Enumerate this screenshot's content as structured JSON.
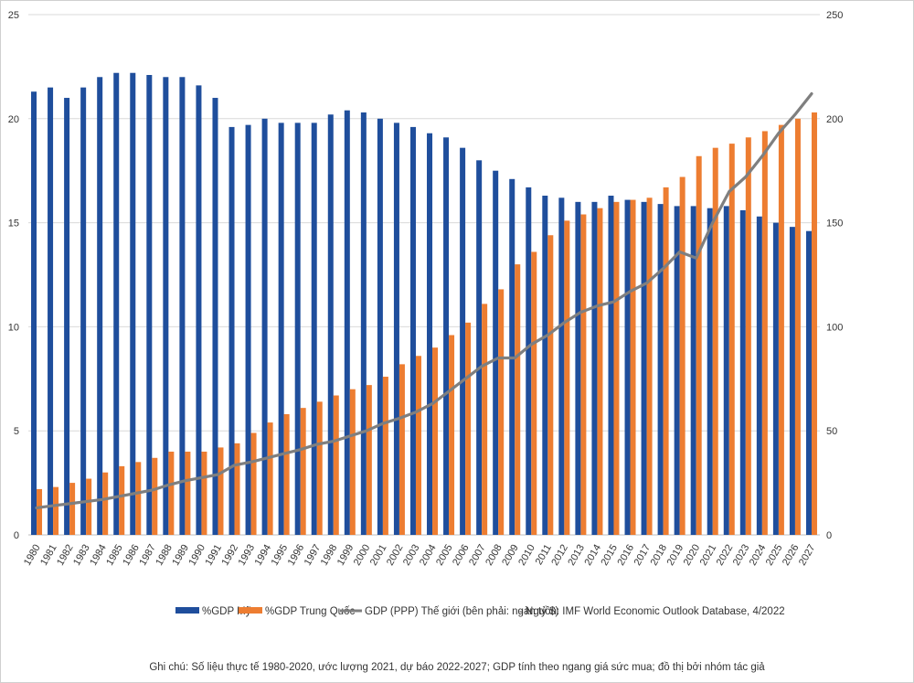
{
  "chart_data": {
    "type": "bar",
    "title": "",
    "categories": [
      "1980",
      "1981",
      "1982",
      "1983",
      "1984",
      "1985",
      "1986",
      "1987",
      "1988",
      "1989",
      "1990",
      "1991",
      "1992",
      "1993",
      "1994",
      "1995",
      "1996",
      "1997",
      "1998",
      "1999",
      "2000",
      "2001",
      "2002",
      "2003",
      "2004",
      "2005",
      "2006",
      "2007",
      "2008",
      "2009",
      "2010",
      "2011",
      "2012",
      "2013",
      "2014",
      "2015",
      "2016",
      "2017",
      "2018",
      "2019",
      "2020",
      "2021",
      "2022",
      "2023",
      "2024",
      "2025",
      "2026",
      "2027"
    ],
    "left_axis": {
      "ylim": [
        0,
        25
      ],
      "ticks": [
        "0",
        "5",
        "10",
        "15",
        "20",
        "25"
      ]
    },
    "right_axis": {
      "ylim": [
        0,
        250
      ],
      "ticks": [
        "0",
        "50",
        "100",
        "150",
        "200",
        "250"
      ]
    },
    "grid": true,
    "series": [
      {
        "name": "%GDP Mỹ",
        "type": "bar",
        "axis": "left",
        "color": "#1f4e9c",
        "values": [
          21.3,
          21.5,
          21.0,
          21.5,
          22.0,
          22.2,
          22.2,
          22.1,
          22.0,
          22.0,
          21.6,
          21.0,
          19.6,
          19.7,
          20.0,
          19.8,
          19.8,
          19.8,
          20.2,
          20.4,
          20.3,
          20.0,
          19.8,
          19.6,
          19.3,
          19.1,
          18.6,
          18.0,
          17.5,
          17.1,
          16.7,
          16.3,
          16.2,
          16.0,
          16.0,
          16.3,
          16.1,
          16.0,
          15.9,
          15.8,
          15.8,
          15.7,
          15.8,
          15.6,
          15.3,
          15.0,
          14.8,
          14.6
        ]
      },
      {
        "name": "%GDP Trung Quốc",
        "type": "bar",
        "axis": "left",
        "color": "#ed7d31",
        "values": [
          2.2,
          2.3,
          2.5,
          2.7,
          3.0,
          3.3,
          3.5,
          3.7,
          4.0,
          4.0,
          4.0,
          4.2,
          4.4,
          4.9,
          5.4,
          5.8,
          6.1,
          6.4,
          6.7,
          7.0,
          7.2,
          7.6,
          8.2,
          8.6,
          9.0,
          9.6,
          10.2,
          11.1,
          11.8,
          13.0,
          13.6,
          14.4,
          15.1,
          15.4,
          15.7,
          16.0,
          16.1,
          16.2,
          16.7,
          17.2,
          18.2,
          18.6,
          18.8,
          19.1,
          19.4,
          19.7,
          20.0,
          20.3
        ]
      },
      {
        "name": "GDP (PPP) Thế giới (bên phải: ngàn tỷ $)",
        "type": "line",
        "axis": "right",
        "color": "#7f7f7f",
        "values": [
          13,
          14,
          15,
          16,
          17,
          18.5,
          20,
          21.5,
          24,
          26,
          27.5,
          29,
          33.5,
          35,
          37,
          39,
          41,
          43.5,
          45,
          47.5,
          50,
          53.5,
          56,
          59,
          63,
          69,
          75,
          81,
          85,
          85,
          91.5,
          96,
          102,
          107,
          110,
          112,
          117,
          121,
          128,
          136,
          133,
          150,
          165,
          172,
          182,
          193,
          202,
          212
        ]
      }
    ],
    "legend": {
      "position": "bottom",
      "items": [
        "%GDP Mỹ",
        "%GDP Trung Quốc",
        "GDP (PPP) Thế giới (bên phải: ngàn tỷ $)"
      ],
      "source": "- Nguồn: IMF World Economic Outlook Database, 4/2022"
    },
    "note": "Ghi chú: Số liệu thực tế 1980-2020, ước lượng 2021, dự báo 2022-2027; GDP tính theo ngang giá sức mua; đồ thị bởi nhóm tác giả"
  }
}
